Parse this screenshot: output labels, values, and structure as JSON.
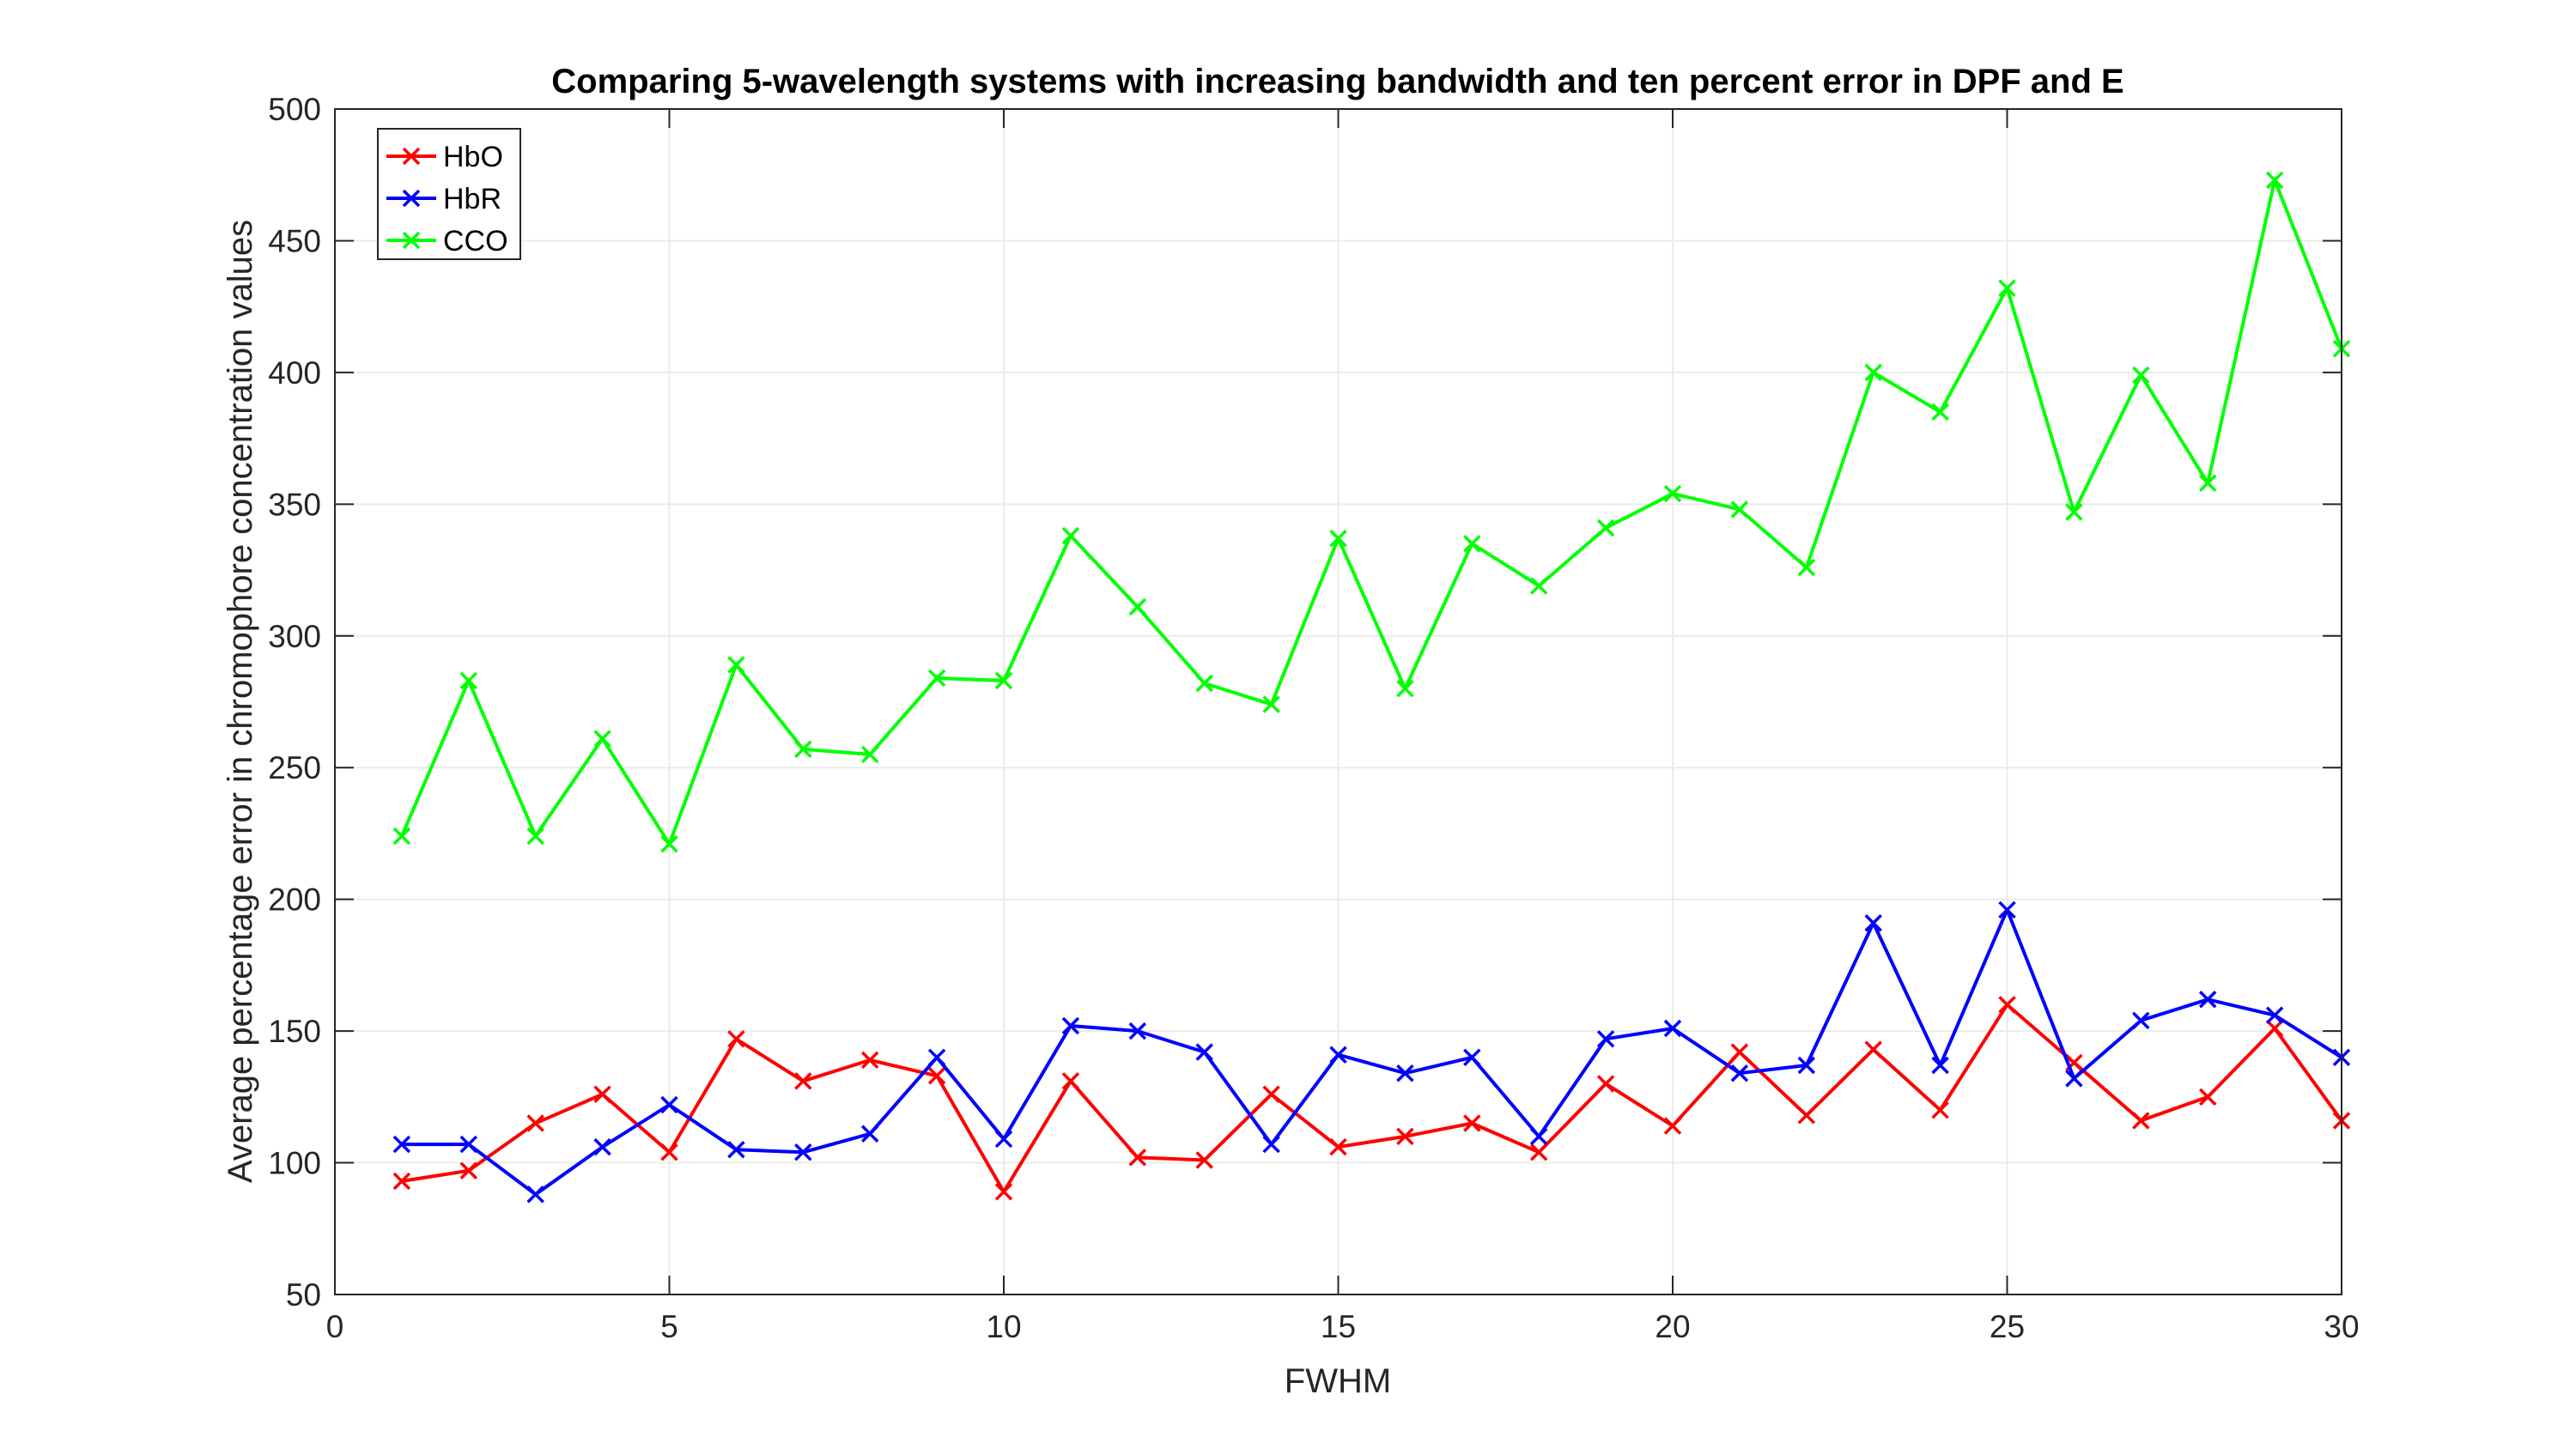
{
  "chart_data": {
    "type": "line",
    "title": "Comparing 5-wavelength systems with increasing bandwidth and ten percent error in DPF and E",
    "xlabel": "FWHM",
    "ylabel": "Average percentage error in chromophore concentration values",
    "xlim": [
      0,
      30
    ],
    "ylim": [
      50,
      500
    ],
    "xticks": [
      "0",
      "5",
      "10",
      "15",
      "20",
      "25",
      "30"
    ],
    "yticks": [
      "50",
      "100",
      "150",
      "200",
      "250",
      "300",
      "350",
      "400",
      "450",
      "500"
    ],
    "grid": true,
    "legend_position": "top-left",
    "marker": "x",
    "x": [
      1,
      2,
      3,
      4,
      5,
      6,
      7,
      8,
      9,
      10,
      11,
      12,
      13,
      14,
      15,
      16,
      17,
      18,
      19,
      20,
      21,
      22,
      23,
      24,
      25,
      26,
      27,
      28,
      29,
      30
    ],
    "series": [
      {
        "name": "HbO",
        "color": "#ff0000",
        "values": [
          93,
          97,
          115,
          126,
          104,
          147,
          131,
          139,
          133,
          89,
          131,
          102,
          101,
          126,
          106,
          110,
          115,
          104,
          130,
          114,
          142,
          118,
          143,
          120,
          160,
          138,
          116,
          125,
          151,
          116
        ]
      },
      {
        "name": "HbR",
        "color": "#0000ff",
        "values": [
          107,
          107,
          88,
          106,
          122,
          105,
          104,
          111,
          140,
          109,
          152,
          150,
          142,
          107,
          141,
          134,
          140,
          110,
          147,
          151,
          134,
          137,
          191,
          137,
          196,
          132,
          154,
          162,
          156,
          140
        ]
      },
      {
        "name": "CCO",
        "color": "#00ff00",
        "values": [
          224,
          283,
          224,
          261,
          221,
          289,
          257,
          255,
          284,
          283,
          338,
          311,
          282,
          274,
          337,
          280,
          335,
          319,
          341,
          354,
          348,
          326,
          400,
          385,
          432,
          347,
          399,
          358,
          473,
          409
        ]
      }
    ]
  }
}
